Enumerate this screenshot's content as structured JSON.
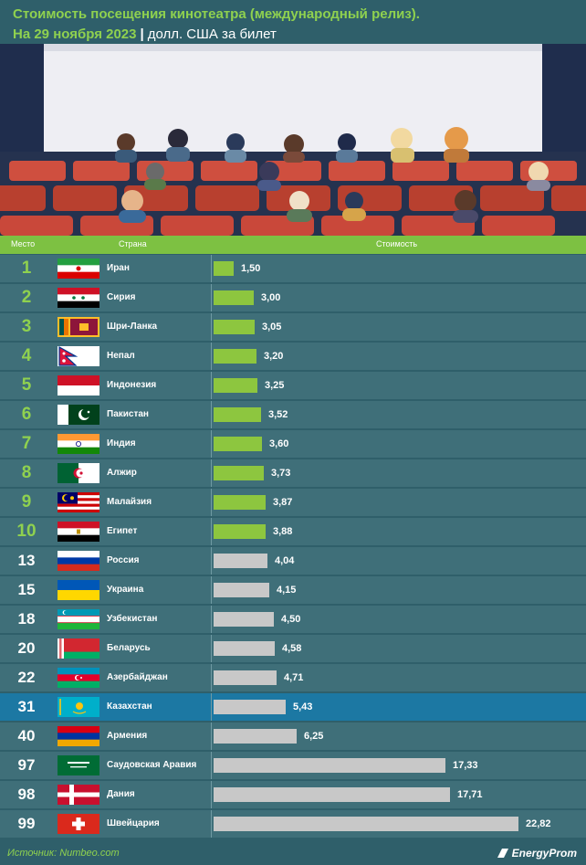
{
  "header": {
    "title": "Стоимость посещения кинотеатра (международный релиз).",
    "date": "На 29 ноября 2023",
    "separator": "|",
    "unit": "долл. США за билет"
  },
  "columns": {
    "rank": "Место",
    "country": "Страна",
    "value": "Стоимость"
  },
  "chart_data": {
    "type": "bar",
    "orientation": "horizontal",
    "title": "Стоимость посещения кинотеатра (международный релиз).",
    "subtitle": "На 29 ноября 2023 | долл. США за билет",
    "xlim": [
      0,
      22.82
    ],
    "colors": {
      "top10": "#8dc63f",
      "other": "#c8c8c8",
      "highlight_row": "#1c78a3"
    },
    "rows": [
      {
        "rank": "1",
        "country": "Иран",
        "value": 1.5,
        "label": "1,50",
        "flag": "iran-flag",
        "top": true
      },
      {
        "rank": "2",
        "country": "Сирия",
        "value": 3.0,
        "label": "3,00",
        "flag": "syria-flag",
        "top": true
      },
      {
        "rank": "3",
        "country": "Шри-Ланка",
        "value": 3.05,
        "label": "3,05",
        "flag": "sri-lanka-flag",
        "top": true
      },
      {
        "rank": "4",
        "country": "Непал",
        "value": 3.2,
        "label": "3,20",
        "flag": "nepal-flag",
        "top": true
      },
      {
        "rank": "5",
        "country": "Индонезия",
        "value": 3.25,
        "label": "3,25",
        "flag": "indonesia-flag",
        "top": true
      },
      {
        "rank": "6",
        "country": "Пакистан",
        "value": 3.52,
        "label": "3,52",
        "flag": "pakistan-flag",
        "top": true
      },
      {
        "rank": "7",
        "country": "Индия",
        "value": 3.6,
        "label": "3,60",
        "flag": "india-flag",
        "top": true
      },
      {
        "rank": "8",
        "country": "Алжир",
        "value": 3.73,
        "label": "3,73",
        "flag": "algeria-flag",
        "top": true
      },
      {
        "rank": "9",
        "country": "Малайзия",
        "value": 3.87,
        "label": "3,87",
        "flag": "malaysia-flag",
        "top": true
      },
      {
        "rank": "10",
        "country": "Египет",
        "value": 3.88,
        "label": "3,88",
        "flag": "egypt-flag",
        "top": true
      },
      {
        "rank": "13",
        "country": "Россия",
        "value": 4.04,
        "label": "4,04",
        "flag": "russia-flag",
        "top": false
      },
      {
        "rank": "15",
        "country": "Украина",
        "value": 4.15,
        "label": "4,15",
        "flag": "ukraine-flag",
        "top": false
      },
      {
        "rank": "18",
        "country": "Узбекистан",
        "value": 4.5,
        "label": "4,50",
        "flag": "uzbekistan-flag",
        "top": false
      },
      {
        "rank": "20",
        "country": "Беларусь",
        "value": 4.58,
        "label": "4,58",
        "flag": "belarus-flag",
        "top": false
      },
      {
        "rank": "22",
        "country": "Азербайджан",
        "value": 4.71,
        "label": "4,71",
        "flag": "azerbaijan-flag",
        "top": false
      },
      {
        "rank": "31",
        "country": "Казахстан",
        "value": 5.43,
        "label": "5,43",
        "flag": "kazakhstan-flag",
        "top": false,
        "highlight": true
      },
      {
        "rank": "40",
        "country": "Армения",
        "value": 6.25,
        "label": "6,25",
        "flag": "armenia-flag",
        "top": false
      },
      {
        "rank": "97",
        "country": "Саудовская Аравия",
        "value": 17.33,
        "label": "17,33",
        "flag": "saudi-arabia-flag",
        "top": false
      },
      {
        "rank": "98",
        "country": "Дания",
        "value": 17.71,
        "label": "17,71",
        "flag": "denmark-flag",
        "top": false
      },
      {
        "rank": "99",
        "country": "Швейцария",
        "value": 22.82,
        "label": "22,82",
        "flag": "switzerland-flag",
        "top": false
      }
    ]
  },
  "footer": {
    "source": "Источник: Numbeo.com",
    "logo": "EnergyProm"
  }
}
